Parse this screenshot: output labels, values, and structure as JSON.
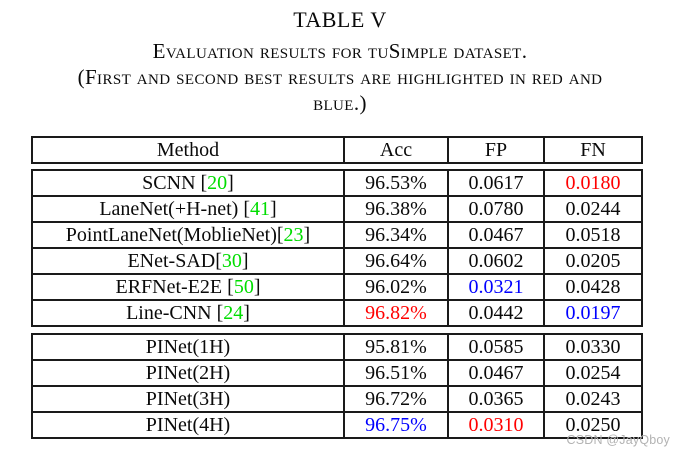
{
  "caption": {
    "table_number": "TABLE V",
    "line1": "Evaluation results for tuSimple dataset.",
    "line2": "(First and second best results are highlighted in red and",
    "line3": "blue.)"
  },
  "table": {
    "columns": [
      "Method",
      "Acc",
      "FP",
      "FN"
    ],
    "groups": [
      {
        "rows": [
          {
            "method": "SCNN [",
            "ref": "20",
            "close": "]",
            "acc": "96.53%",
            "acc_color": "",
            "fp": "0.0617",
            "fp_color": "",
            "fn": "0.0180",
            "fn_color": "red"
          },
          {
            "method": "LaneNet(+H-net) [",
            "ref": "41",
            "close": "]",
            "acc": "96.38%",
            "acc_color": "",
            "fp": "0.0780",
            "fp_color": "",
            "fn": "0.0244",
            "fn_color": ""
          },
          {
            "method": "PointLaneNet(MoblieNet)[",
            "ref": "23",
            "close": "]",
            "acc": "96.34%",
            "acc_color": "",
            "fp": "0.0467",
            "fp_color": "",
            "fn": "0.0518",
            "fn_color": ""
          },
          {
            "method": "ENet-SAD[",
            "ref": "30",
            "close": "]",
            "acc": "96.64%",
            "acc_color": "",
            "fp": "0.0602",
            "fp_color": "",
            "fn": "0.0205",
            "fn_color": ""
          },
          {
            "method": "ERFNet-E2E [",
            "ref": "50",
            "close": "]",
            "acc": "96.02%",
            "acc_color": "",
            "fp": "0.0321",
            "fp_color": "blue",
            "fn": "0.0428",
            "fn_color": ""
          },
          {
            "method": "Line-CNN [",
            "ref": "24",
            "close": "]",
            "acc": "96.82%",
            "acc_color": "red",
            "fp": "0.0442",
            "fp_color": "",
            "fn": "0.0197",
            "fn_color": "blue"
          }
        ]
      },
      {
        "rows": [
          {
            "method": "PINet(1H)",
            "ref": "",
            "close": "",
            "acc": "95.81%",
            "acc_color": "",
            "fp": "0.0585",
            "fp_color": "",
            "fn": "0.0330",
            "fn_color": ""
          },
          {
            "method": "PINet(2H)",
            "ref": "",
            "close": "",
            "acc": "96.51%",
            "acc_color": "",
            "fp": "0.0467",
            "fp_color": "",
            "fn": "0.0254",
            "fn_color": ""
          },
          {
            "method": "PINet(3H)",
            "ref": "",
            "close": "",
            "acc": "96.72%",
            "acc_color": "",
            "fp": "0.0365",
            "fp_color": "",
            "fn": "0.0243",
            "fn_color": ""
          },
          {
            "method": "PINet(4H)",
            "ref": "",
            "close": "",
            "acc": "96.75%",
            "acc_color": "blue",
            "fp": "0.0310",
            "fp_color": "red",
            "fn": "0.0250",
            "fn_color": ""
          }
        ]
      }
    ]
  },
  "watermark": "CSDN @JayQboy",
  "colors": {
    "first_best_red": "#ff0000",
    "second_best_blue": "#0000ff",
    "citation_green": "#00dd00",
    "text": "#0a0a0a",
    "border": "#1a1a1a",
    "watermark_gray": "#b3b3b3"
  }
}
